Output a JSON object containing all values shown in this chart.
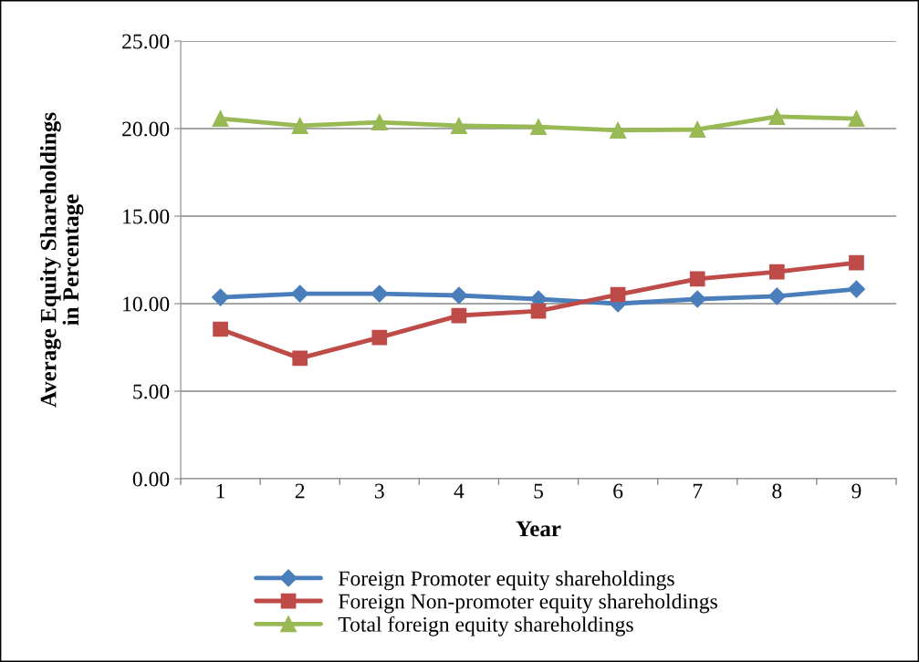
{
  "chart_data": {
    "type": "line",
    "xlabel": "Year",
    "ylabel": "Average Equity Shareholdings\nin Percentage",
    "categories": [
      "1",
      "2",
      "3",
      "4",
      "5",
      "6",
      "7",
      "8",
      "9"
    ],
    "series": [
      {
        "name": "Foreign Promoter equity shareholdings",
        "color": "#4a7ebb",
        "marker": "diamond",
        "values": [
          10.36,
          10.57,
          10.57,
          10.47,
          10.26,
          10.0,
          10.26,
          10.42,
          10.83
        ]
      },
      {
        "name": "Foreign Non-promoter equity shareholdings",
        "color": "#be4b48",
        "marker": "square",
        "values": [
          8.54,
          6.88,
          8.07,
          9.32,
          9.58,
          10.52,
          11.41,
          11.82,
          12.34
        ]
      },
      {
        "name": "Total foreign equity shareholdings",
        "color": "#98b954",
        "marker": "triangle",
        "values": [
          20.57,
          20.16,
          20.36,
          20.16,
          20.1,
          19.9,
          19.95,
          20.68,
          20.57
        ]
      }
    ],
    "ylim": [
      0,
      25
    ],
    "yticks": [
      {
        "value": 0,
        "label": "0.00"
      },
      {
        "value": 5,
        "label": "5.00"
      },
      {
        "value": 10,
        "label": "10.00"
      },
      {
        "value": 15,
        "label": "15.00"
      },
      {
        "value": 20,
        "label": "20.00"
      },
      {
        "value": 25,
        "label": "25.00"
      }
    ],
    "grid": "y",
    "legend": "bottom",
    "line_style": "solid"
  }
}
